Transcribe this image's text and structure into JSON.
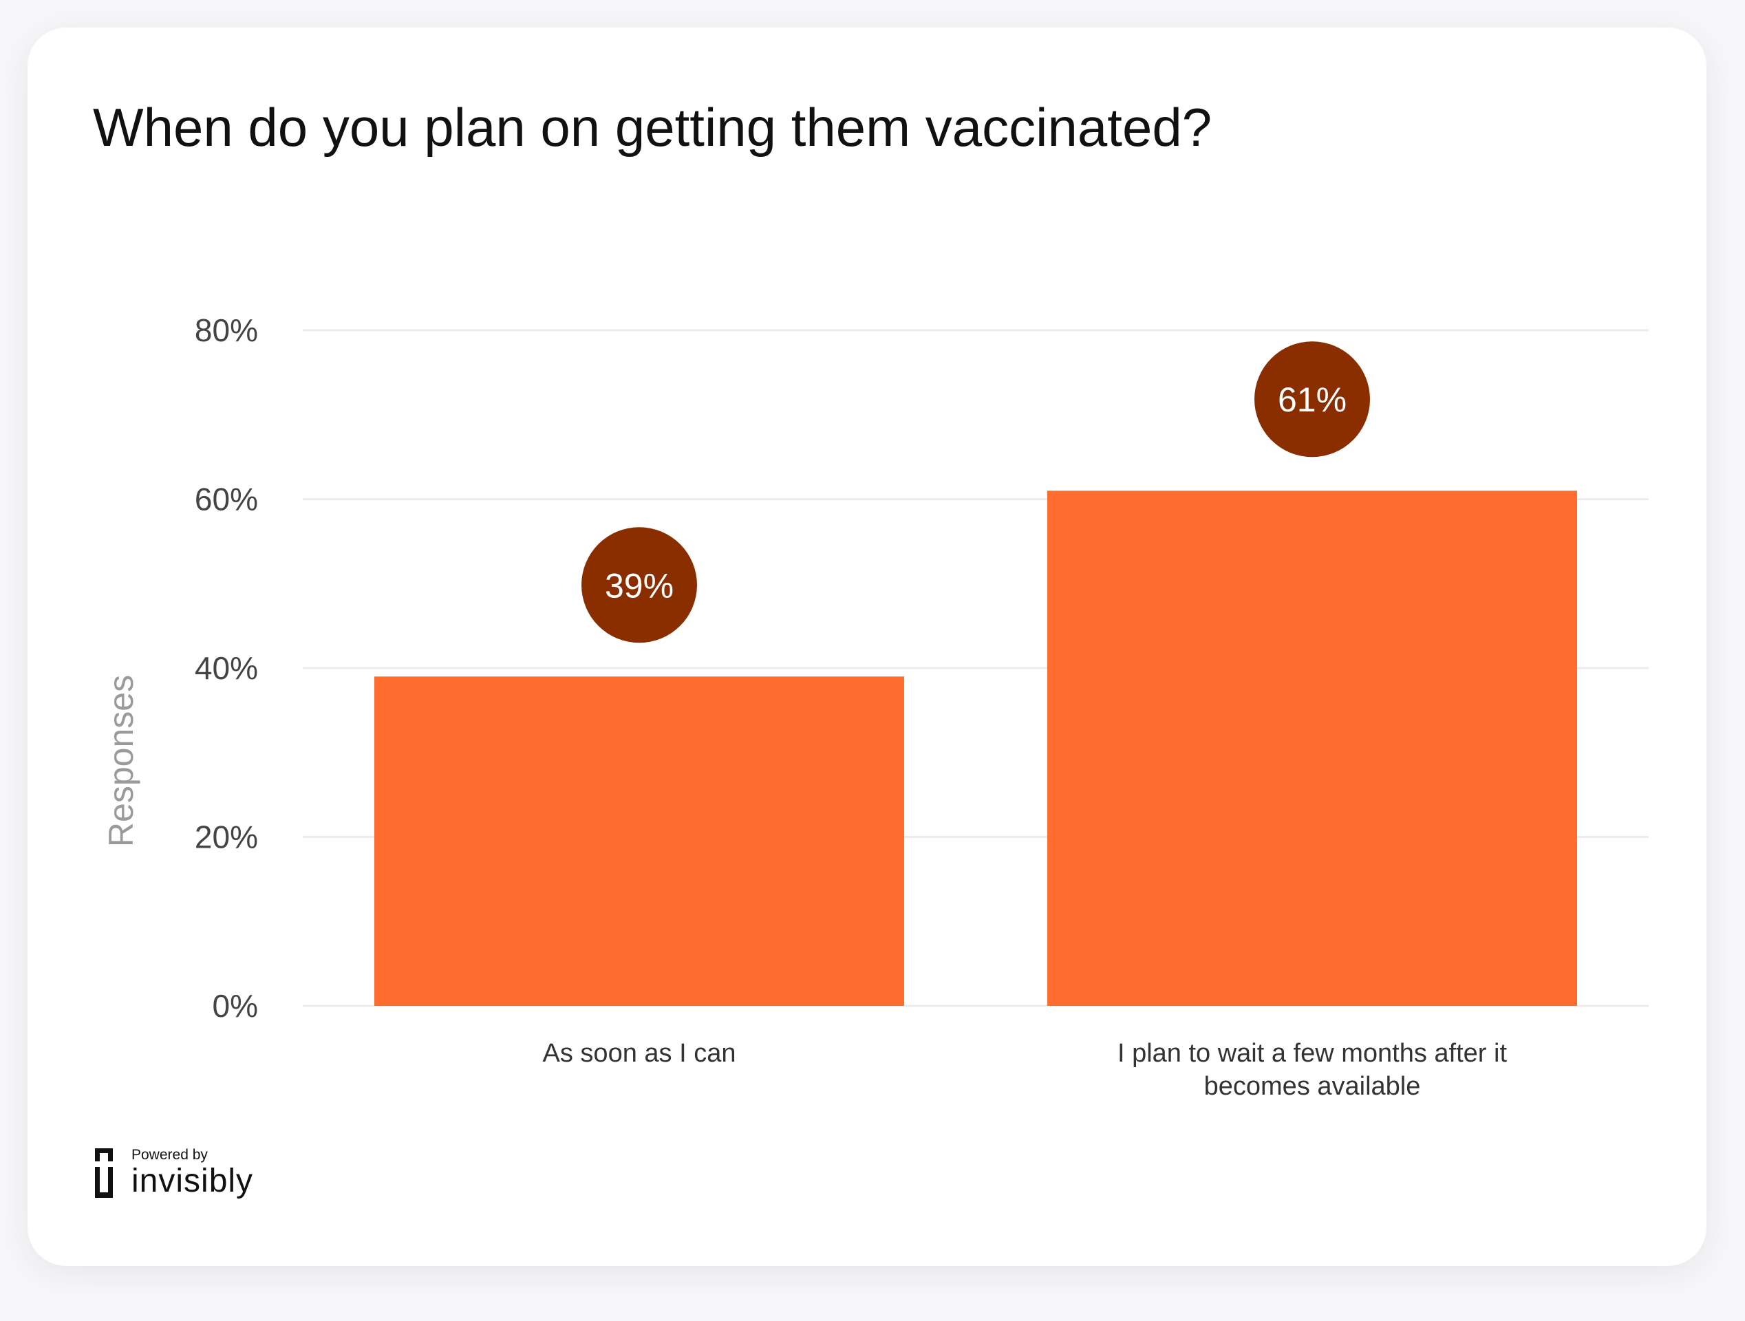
{
  "chart_data": {
    "type": "bar",
    "title": "When do you plan on getting them vaccinated?",
    "ylabel": "Responses",
    "xlabel": "",
    "categories": [
      [
        "As soon as I can"
      ],
      [
        "I plan to wait a few months after it",
        "becomes available"
      ]
    ],
    "values": [
      39,
      61
    ],
    "value_labels": [
      "39%",
      "61%"
    ],
    "ylim": [
      0,
      80
    ],
    "yticks": [
      0,
      20,
      40,
      60,
      80
    ],
    "ytick_labels": [
      "0%",
      "20%",
      "40%",
      "60%",
      "80%"
    ],
    "grid": true,
    "colors": {
      "bar": "#ff6d2e",
      "label_bubble": "#8a2e00",
      "grid": "#ececec"
    }
  },
  "branding": {
    "powered_by": "Powered by",
    "name": "invisibly"
  }
}
